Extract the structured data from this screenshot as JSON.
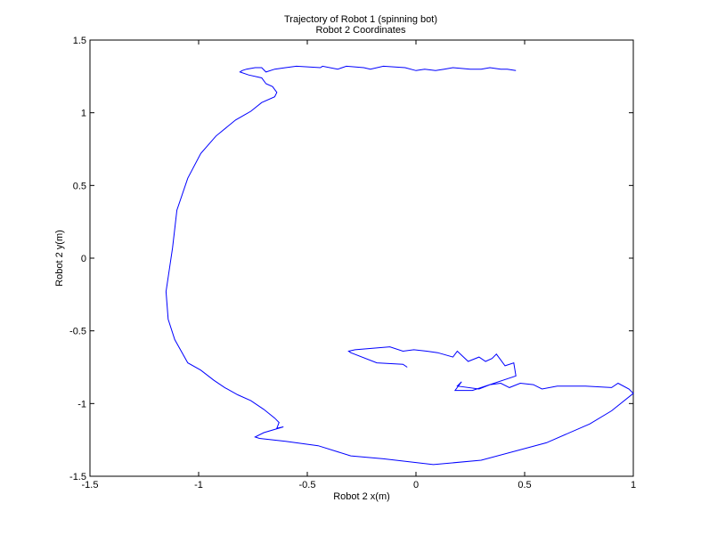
{
  "chart_data": {
    "type": "line",
    "title": "Trajectory of Robot 1 (spinning bot)",
    "subtitle": "Robot 2 Coordinates",
    "xlabel": "Robot 2 x(m)",
    "ylabel": "Robot 2 y(m)",
    "xlim": [
      -1.5,
      1.0
    ],
    "ylim": [
      -1.5,
      1.5
    ],
    "x_ticks": [
      "-1.5",
      "-1",
      "-0.5",
      "0",
      "0.5",
      "1"
    ],
    "y_ticks": [
      "-1.5",
      "-1",
      "-0.5",
      "0",
      "0.5",
      "1",
      "1.5"
    ],
    "grid": false,
    "line_color": "#0000ff",
    "series": [
      {
        "x": [
          0.46,
          0.42,
          0.39,
          0.34,
          0.3,
          0.25,
          0.17,
          0.13,
          0.09,
          0.04,
          0.0,
          -0.05,
          -0.15,
          -0.21,
          -0.24,
          -0.32,
          -0.36,
          -0.43,
          -0.44,
          -0.55,
          -0.6,
          -0.65,
          -0.69,
          -0.71,
          -0.74,
          -0.78,
          -0.8,
          -0.81,
          -0.77,
          -0.71,
          -0.69,
          -0.66,
          -0.64,
          -0.65,
          -0.71,
          -0.76,
          -0.83,
          -0.92,
          -0.99,
          -1.05,
          -1.1,
          -1.12,
          -1.15,
          -1.14,
          -1.11,
          -1.05,
          -0.99,
          -0.93,
          -0.88,
          -0.82,
          -0.76,
          -0.7,
          -0.65,
          -0.63,
          -0.64,
          -0.61,
          -0.7,
          -0.74,
          -0.72,
          -0.6,
          -0.45,
          -0.3,
          -0.15,
          0.08,
          0.3,
          0.6,
          0.8,
          0.9,
          1.0,
          0.98,
          0.93,
          0.9,
          0.78,
          0.65,
          0.58,
          0.54,
          0.48,
          0.43,
          0.39,
          0.34,
          0.29,
          0.19,
          0.21,
          0.18,
          0.26,
          0.46,
          0.45,
          0.41,
          0.37,
          0.35,
          0.32,
          0.29,
          0.24,
          0.19,
          0.17,
          0.1,
          0.05,
          -0.01,
          -0.06,
          -0.12,
          -0.2,
          -0.28,
          -0.31,
          -0.3,
          -0.18,
          -0.06,
          -0.04
        ],
        "y": [
          1.29,
          1.3,
          1.3,
          1.31,
          1.3,
          1.3,
          1.31,
          1.3,
          1.29,
          1.3,
          1.29,
          1.31,
          1.32,
          1.3,
          1.31,
          1.32,
          1.3,
          1.32,
          1.31,
          1.32,
          1.31,
          1.3,
          1.28,
          1.31,
          1.31,
          1.3,
          1.29,
          1.28,
          1.26,
          1.24,
          1.2,
          1.18,
          1.14,
          1.11,
          1.07,
          1.01,
          0.95,
          0.84,
          0.72,
          0.55,
          0.33,
          0.07,
          -0.23,
          -0.42,
          -0.56,
          -0.72,
          -0.77,
          -0.84,
          -0.89,
          -0.94,
          -0.98,
          -1.04,
          -1.1,
          -1.13,
          -1.17,
          -1.16,
          -1.2,
          -1.23,
          -1.24,
          -1.26,
          -1.29,
          -1.36,
          -1.38,
          -1.42,
          -1.39,
          -1.27,
          -1.14,
          -1.05,
          -0.93,
          -0.9,
          -0.86,
          -0.89,
          -0.88,
          -0.88,
          -0.9,
          -0.87,
          -0.86,
          -0.89,
          -0.86,
          -0.87,
          -0.9,
          -0.88,
          -0.85,
          -0.91,
          -0.91,
          -0.81,
          -0.72,
          -0.74,
          -0.66,
          -0.69,
          -0.71,
          -0.68,
          -0.71,
          -0.64,
          -0.68,
          -0.65,
          -0.64,
          -0.63,
          -0.64,
          -0.61,
          -0.62,
          -0.63,
          -0.64,
          -0.65,
          -0.72,
          -0.73,
          -0.75
        ]
      }
    ]
  }
}
